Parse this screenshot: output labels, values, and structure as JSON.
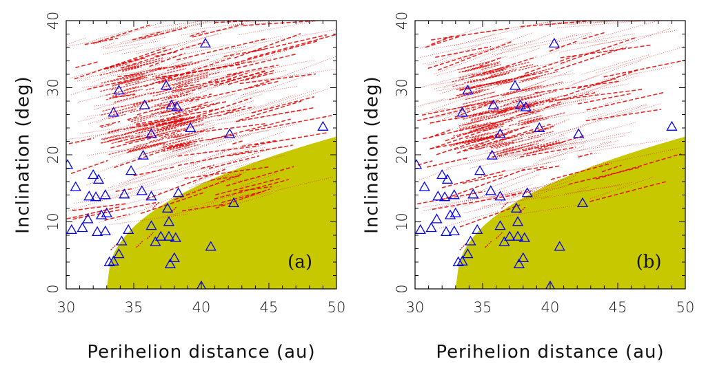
{
  "chart_data": [
    {
      "type": "scatter",
      "panel_label": "(a)",
      "xlabel": "Perihelion distance (au)",
      "ylabel": "Inclination (deg)",
      "xlim": [
        30,
        50
      ],
      "ylim": [
        0,
        40
      ],
      "xticks": [
        30,
        35,
        40,
        45,
        50
      ],
      "yticks": [
        0,
        10,
        20,
        30,
        40
      ],
      "grid": false,
      "shaded_region_color": "#c8c800",
      "simulated_color": "#e00000",
      "observed_color": "#0000ee",
      "observed": [
        {
          "x": 30.1,
          "y": 18.5
        },
        {
          "x": 30.4,
          "y": 8.8
        },
        {
          "x": 30.7,
          "y": 15.2
        },
        {
          "x": 31.2,
          "y": 9.1
        },
        {
          "x": 31.6,
          "y": 10.4
        },
        {
          "x": 31.7,
          "y": 13.8
        },
        {
          "x": 32.0,
          "y": 17.0
        },
        {
          "x": 32.2,
          "y": 13.7
        },
        {
          "x": 32.4,
          "y": 16.3
        },
        {
          "x": 32.3,
          "y": 8.5
        },
        {
          "x": 32.6,
          "y": 11.0
        },
        {
          "x": 32.9,
          "y": 8.6
        },
        {
          "x": 32.9,
          "y": 14.0
        },
        {
          "x": 33.0,
          "y": 11.3
        },
        {
          "x": 33.2,
          "y": 4.0
        },
        {
          "x": 33.5,
          "y": 4.1
        },
        {
          "x": 33.5,
          "y": 26.3
        },
        {
          "x": 33.9,
          "y": 29.6
        },
        {
          "x": 33.9,
          "y": 5.2
        },
        {
          "x": 34.1,
          "y": 7.1
        },
        {
          "x": 34.3,
          "y": 14.1
        },
        {
          "x": 34.6,
          "y": 8.8
        },
        {
          "x": 34.8,
          "y": 17.6
        },
        {
          "x": 35.6,
          "y": 14.6
        },
        {
          "x": 35.7,
          "y": 19.9
        },
        {
          "x": 35.8,
          "y": 27.4
        },
        {
          "x": 36.3,
          "y": 23.1
        },
        {
          "x": 36.3,
          "y": 13.8
        },
        {
          "x": 36.3,
          "y": 9.4
        },
        {
          "x": 36.6,
          "y": 7.0
        },
        {
          "x": 37.0,
          "y": 7.8
        },
        {
          "x": 37.4,
          "y": 30.3
        },
        {
          "x": 37.5,
          "y": 12.0
        },
        {
          "x": 37.6,
          "y": 10.0
        },
        {
          "x": 37.6,
          "y": 7.8
        },
        {
          "x": 37.7,
          "y": 3.7
        },
        {
          "x": 37.8,
          "y": 27.4
        },
        {
          "x": 38.0,
          "y": 4.6
        },
        {
          "x": 38.1,
          "y": 7.6
        },
        {
          "x": 38.2,
          "y": 27.1
        },
        {
          "x": 38.3,
          "y": 14.3
        },
        {
          "x": 39.2,
          "y": 24.0
        },
        {
          "x": 40.0,
          "y": 0.4
        },
        {
          "x": 40.3,
          "y": 36.6
        },
        {
          "x": 40.7,
          "y": 6.3
        },
        {
          "x": 42.1,
          "y": 23.1
        },
        {
          "x": 42.4,
          "y": 12.8
        },
        {
          "x": 49.0,
          "y": 24.2
        }
      ]
    },
    {
      "type": "scatter",
      "panel_label": "(b)",
      "xlabel": "Perihelion distance (au)",
      "ylabel": "Inclination (deg)",
      "xlim": [
        30,
        50
      ],
      "ylim": [
        0,
        40
      ],
      "xticks": [
        30,
        35,
        40,
        45,
        50
      ],
      "yticks": [
        0,
        10,
        20,
        30,
        40
      ],
      "grid": false,
      "shaded_region_color": "#c8c800",
      "simulated_color": "#e00000",
      "observed_color": "#0000ee",
      "observed": [
        {
          "x": 30.1,
          "y": 18.5
        },
        {
          "x": 30.4,
          "y": 8.8
        },
        {
          "x": 30.7,
          "y": 15.2
        },
        {
          "x": 31.2,
          "y": 9.1
        },
        {
          "x": 31.6,
          "y": 10.4
        },
        {
          "x": 31.7,
          "y": 13.8
        },
        {
          "x": 32.0,
          "y": 17.0
        },
        {
          "x": 32.2,
          "y": 13.7
        },
        {
          "x": 32.4,
          "y": 16.3
        },
        {
          "x": 32.3,
          "y": 8.5
        },
        {
          "x": 32.6,
          "y": 11.0
        },
        {
          "x": 32.9,
          "y": 8.6
        },
        {
          "x": 32.9,
          "y": 14.0
        },
        {
          "x": 33.0,
          "y": 11.3
        },
        {
          "x": 33.2,
          "y": 4.0
        },
        {
          "x": 33.5,
          "y": 4.1
        },
        {
          "x": 33.5,
          "y": 26.3
        },
        {
          "x": 33.9,
          "y": 29.6
        },
        {
          "x": 33.9,
          "y": 5.2
        },
        {
          "x": 34.1,
          "y": 7.1
        },
        {
          "x": 34.3,
          "y": 14.1
        },
        {
          "x": 34.6,
          "y": 8.8
        },
        {
          "x": 34.8,
          "y": 17.6
        },
        {
          "x": 35.6,
          "y": 14.6
        },
        {
          "x": 35.7,
          "y": 19.9
        },
        {
          "x": 35.8,
          "y": 27.4
        },
        {
          "x": 36.3,
          "y": 23.1
        },
        {
          "x": 36.3,
          "y": 13.8
        },
        {
          "x": 36.3,
          "y": 9.4
        },
        {
          "x": 36.6,
          "y": 7.0
        },
        {
          "x": 37.0,
          "y": 7.8
        },
        {
          "x": 37.4,
          "y": 30.3
        },
        {
          "x": 37.5,
          "y": 12.0
        },
        {
          "x": 37.6,
          "y": 10.0
        },
        {
          "x": 37.6,
          "y": 7.8
        },
        {
          "x": 37.7,
          "y": 3.7
        },
        {
          "x": 37.8,
          "y": 27.4
        },
        {
          "x": 38.0,
          "y": 4.6
        },
        {
          "x": 38.1,
          "y": 7.6
        },
        {
          "x": 38.2,
          "y": 27.1
        },
        {
          "x": 38.3,
          "y": 14.3
        },
        {
          "x": 39.2,
          "y": 24.0
        },
        {
          "x": 40.0,
          "y": 0.4
        },
        {
          "x": 40.3,
          "y": 36.6
        },
        {
          "x": 40.7,
          "y": 6.3
        },
        {
          "x": 42.1,
          "y": 23.1
        },
        {
          "x": 42.4,
          "y": 12.8
        },
        {
          "x": 49.0,
          "y": 24.2
        }
      ]
    }
  ]
}
